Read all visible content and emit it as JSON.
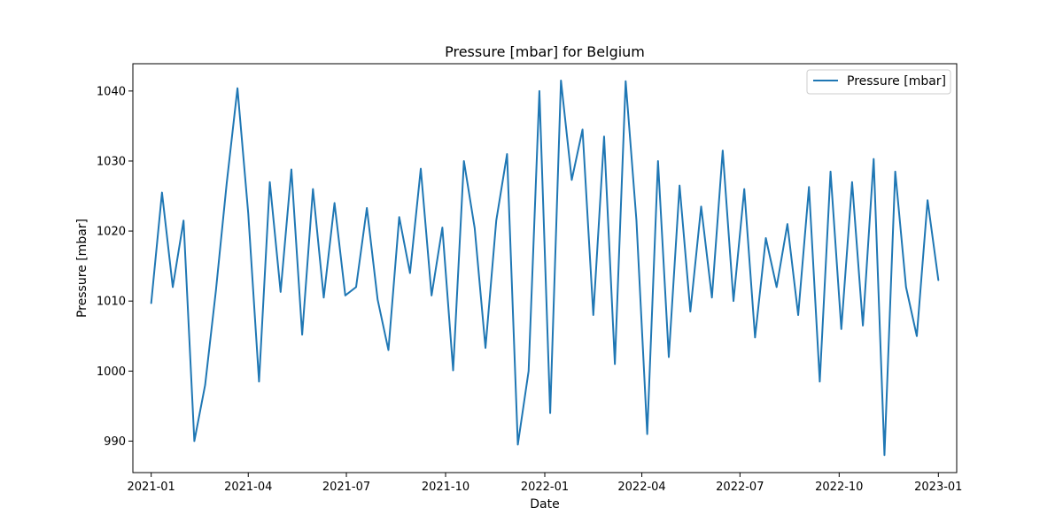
{
  "chart_data": {
    "type": "line",
    "title": "Pressure [mbar] for Belgium",
    "xlabel": "Date",
    "ylabel": "Pressure [mbar]",
    "x_start": "2021-01-01",
    "x_end": "2023-01-01",
    "xlim": [
      "2020-12-15",
      "2023-01-18"
    ],
    "ylim": [
      985.5,
      1043.9
    ],
    "x_ticks": [
      "2021-01",
      "2021-04",
      "2021-07",
      "2021-10",
      "2022-01",
      "2022-04",
      "2022-07",
      "2022-10",
      "2023-01"
    ],
    "y_ticks": [
      990,
      1000,
      1010,
      1020,
      1030,
      1040
    ],
    "grid": false,
    "legend_position": "upper-right",
    "series": [
      {
        "name": "Pressure [mbar]",
        "color": "#1f77b4",
        "x": [
          "2021-01-01",
          "2021-01-11",
          "2021-01-21",
          "2021-01-31",
          "2021-02-10",
          "2021-02-20",
          "2021-03-02",
          "2021-03-12",
          "2021-03-22",
          "2021-04-01",
          "2021-04-11",
          "2021-04-21",
          "2021-05-01",
          "2021-05-11",
          "2021-05-21",
          "2021-05-31",
          "2021-06-10",
          "2021-06-20",
          "2021-06-30",
          "2021-07-10",
          "2021-07-20",
          "2021-07-30",
          "2021-08-09",
          "2021-08-19",
          "2021-08-29",
          "2021-09-08",
          "2021-09-18",
          "2021-09-28",
          "2021-10-08",
          "2021-10-18",
          "2021-10-28",
          "2021-11-07",
          "2021-11-17",
          "2021-11-27",
          "2021-12-07",
          "2021-12-17",
          "2021-12-27",
          "2022-01-06",
          "2022-01-16",
          "2022-01-26",
          "2022-02-05",
          "2022-02-15",
          "2022-02-25",
          "2022-03-07",
          "2022-03-17",
          "2022-03-27",
          "2022-04-06",
          "2022-04-16",
          "2022-04-26",
          "2022-05-06",
          "2022-05-16",
          "2022-05-26",
          "2022-06-05",
          "2022-06-15",
          "2022-06-25",
          "2022-07-05",
          "2022-07-15",
          "2022-07-25",
          "2022-08-04",
          "2022-08-14",
          "2022-08-24",
          "2022-09-03",
          "2022-09-13",
          "2022-09-23",
          "2022-10-03",
          "2022-10-13",
          "2022-10-23",
          "2022-11-02",
          "2022-11-12",
          "2022-11-22",
          "2022-12-02",
          "2022-12-12",
          "2022-12-22",
          "2023-01-01"
        ],
        "values": [
          1009.7,
          1025.5,
          1012.0,
          1021.5,
          990.0,
          998.0,
          1011.5,
          1026.8,
          1040.4,
          1022.5,
          998.5,
          1027.0,
          1011.3,
          1028.8,
          1005.2,
          1026.0,
          1010.5,
          1024.0,
          1010.8,
          1012.0,
          1023.3,
          1010.2,
          1003.0,
          1022.0,
          1014.0,
          1028.9,
          1010.8,
          1020.5,
          1000.1,
          1030.0,
          1020.4,
          1003.3,
          1021.5,
          1031.0,
          989.5,
          1000.0,
          1040.0,
          994.0,
          1041.5,
          1027.3,
          1034.5,
          1008.0,
          1033.5,
          1001.0,
          1041.4,
          1021.5,
          991.0,
          1030.0,
          1002.0,
          1026.5,
          1008.5,
          1023.5,
          1010.5,
          1031.5,
          1010.0,
          1026.0,
          1004.8,
          1019.0,
          1012.0,
          1021.0,
          1008.0,
          1026.3,
          998.5,
          1028.5,
          1006.0,
          1027.0,
          1006.5,
          1030.3,
          988.0,
          1028.5,
          1012.0,
          1005.0,
          1024.4,
          1013.0
        ]
      }
    ]
  }
}
